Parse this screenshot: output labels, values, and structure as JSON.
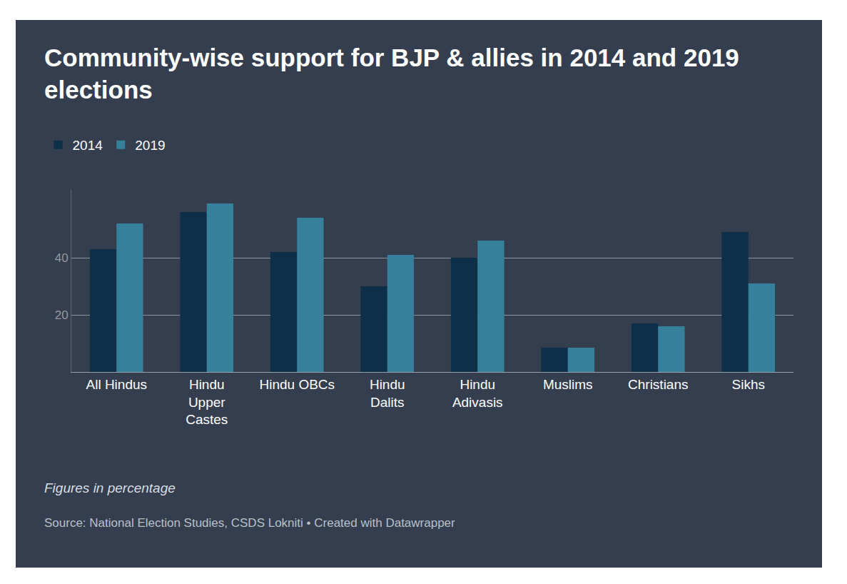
{
  "chart_data": {
    "type": "bar",
    "title": "Community-wise support for BJP & allies in 2014 and 2019 elections",
    "categories": [
      "All Hindus",
      "Hindu Upper Castes",
      "Hindu OBCs",
      "Hindu Dalits",
      "Hindu Adivasis",
      "Muslims",
      "Christians",
      "Sikhs"
    ],
    "series": [
      {
        "name": "2014",
        "color": "#0d2f47",
        "values": [
          43,
          56,
          42,
          30,
          40,
          8.5,
          17,
          49
        ]
      },
      {
        "name": "2019",
        "color": "#37809c",
        "values": [
          52,
          59,
          54,
          41,
          46,
          8.5,
          16,
          31
        ]
      }
    ],
    "ylim": [
      0,
      64
    ],
    "yticks": [
      20,
      40
    ],
    "grid": true,
    "legend": "top-left",
    "data_labels": false,
    "annotations": [
      "Figures in percentage",
      "Source: National Election Studies, CSDS Lokniti • Created with Datawrapper"
    ]
  }
}
